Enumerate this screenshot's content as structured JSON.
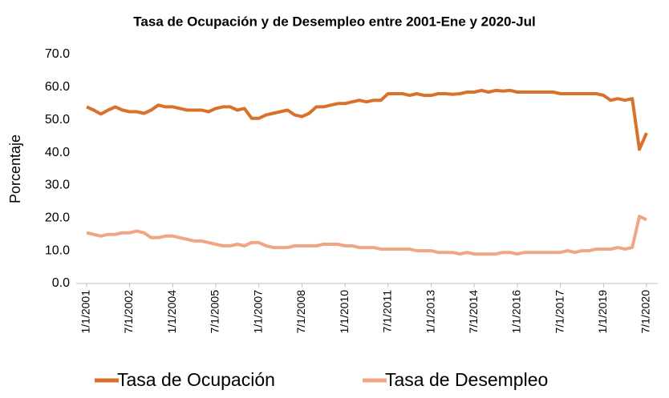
{
  "chart_data": {
    "type": "line",
    "title": "Tasa de Ocupación y de Desempleo entre 2001-Ene y 2020-Jul",
    "y_label": "Porcentaje",
    "x": [
      "1/1/2001",
      "4/1/2001",
      "7/1/2001",
      "10/1/2001",
      "1/1/2002",
      "4/1/2002",
      "7/1/2002",
      "10/1/2002",
      "1/1/2003",
      "4/1/2003",
      "7/1/2003",
      "10/1/2003",
      "1/1/2004",
      "4/1/2004",
      "7/1/2004",
      "10/1/2004",
      "1/1/2005",
      "4/1/2005",
      "7/1/2005",
      "10/1/2005",
      "1/1/2006",
      "4/1/2006",
      "7/1/2006",
      "10/1/2006",
      "1/1/2007",
      "4/1/2007",
      "7/1/2007",
      "10/1/2007",
      "1/1/2008",
      "4/1/2008",
      "7/1/2008",
      "10/1/2008",
      "1/1/2009",
      "4/1/2009",
      "7/1/2009",
      "10/1/2009",
      "1/1/2010",
      "4/1/2010",
      "7/1/2010",
      "10/1/2010",
      "1/1/2011",
      "4/1/2011",
      "7/1/2011",
      "10/1/2011",
      "1/1/2012",
      "4/1/2012",
      "7/1/2012",
      "10/1/2012",
      "1/1/2013",
      "4/1/2013",
      "7/1/2013",
      "10/1/2013",
      "1/1/2014",
      "4/1/2014",
      "7/1/2014",
      "10/1/2014",
      "1/1/2015",
      "4/1/2015",
      "7/1/2015",
      "10/1/2015",
      "1/1/2016",
      "4/1/2016",
      "7/1/2016",
      "10/1/2016",
      "1/1/2017",
      "4/1/2017",
      "7/1/2017",
      "10/1/2017",
      "1/1/2018",
      "4/1/2018",
      "7/1/2018",
      "10/1/2018",
      "1/1/2019",
      "4/1/2019",
      "7/1/2019",
      "10/1/2019",
      "1/1/2020",
      "4/1/2020",
      "7/1/2020"
    ],
    "series": [
      {
        "name": "Tasa de Ocupación",
        "color": "#d9712b",
        "values": [
          54,
          53,
          51.8,
          53,
          54,
          53,
          52.5,
          52.5,
          52,
          53,
          54.5,
          54,
          54,
          53.5,
          53,
          53,
          53,
          52.5,
          53.5,
          54,
          54,
          53,
          53.5,
          50.5,
          50.5,
          51.5,
          52,
          52.5,
          53,
          51.5,
          51,
          52,
          54,
          54,
          54.5,
          55,
          55,
          55.5,
          56,
          55.5,
          56,
          56,
          58,
          58,
          58,
          57.5,
          58,
          57.5,
          57.5,
          58,
          58,
          57.8,
          58,
          58.5,
          58.5,
          59,
          58.5,
          59,
          58.8,
          59,
          58.5,
          58.5,
          58.5,
          58.5,
          58.5,
          58.5,
          58,
          58,
          58,
          58,
          58,
          58,
          57.5,
          56,
          56.5,
          56,
          56.5,
          41,
          46
        ]
      },
      {
        "name": "Tasa de Desempleo",
        "color": "#f2a583",
        "values": [
          15.5,
          15,
          14.5,
          15,
          15,
          15.5,
          15.5,
          16,
          15.5,
          14,
          14,
          14.5,
          14.5,
          14,
          13.5,
          13,
          13,
          12.5,
          12,
          11.5,
          11.5,
          12,
          11.5,
          12.5,
          12.5,
          11.5,
          11,
          11,
          11,
          11.5,
          11.5,
          11.5,
          11.5,
          12,
          12,
          12,
          11.5,
          11.5,
          11,
          11,
          11,
          10.5,
          10.5,
          10.5,
          10.5,
          10.5,
          10,
          10,
          10,
          9.5,
          9.5,
          9.5,
          9,
          9.5,
          9,
          9,
          9,
          9,
          9.5,
          9.5,
          9,
          9.5,
          9.5,
          9.5,
          9.5,
          9.5,
          9.5,
          10,
          9.5,
          10,
          10,
          10.5,
          10.5,
          10.5,
          11,
          10.5,
          11,
          20.5,
          19.5
        ]
      }
    ],
    "xticks": [
      "1/1/2001",
      "7/1/2002",
      "1/1/2004",
      "7/1/2005",
      "1/1/2007",
      "7/1/2008",
      "1/1/2010",
      "7/1/2011",
      "1/1/2013",
      "7/1/2014",
      "1/1/2016",
      "7/1/2017",
      "1/1/2019",
      "7/1/2020"
    ],
    "ylim": [
      0,
      70
    ],
    "yticks": [
      {
        "value": 0,
        "label": "0.0"
      },
      {
        "value": 10,
        "label": "10.0"
      },
      {
        "value": 20,
        "label": "20.0"
      },
      {
        "value": 30,
        "label": "30.0"
      },
      {
        "value": 40,
        "label": "40.0"
      },
      {
        "value": 50,
        "label": "50.0"
      },
      {
        "value": 60,
        "label": "60.0"
      },
      {
        "value": 70,
        "label": "70.0"
      }
    ],
    "legend": "bottom",
    "grid": false
  }
}
